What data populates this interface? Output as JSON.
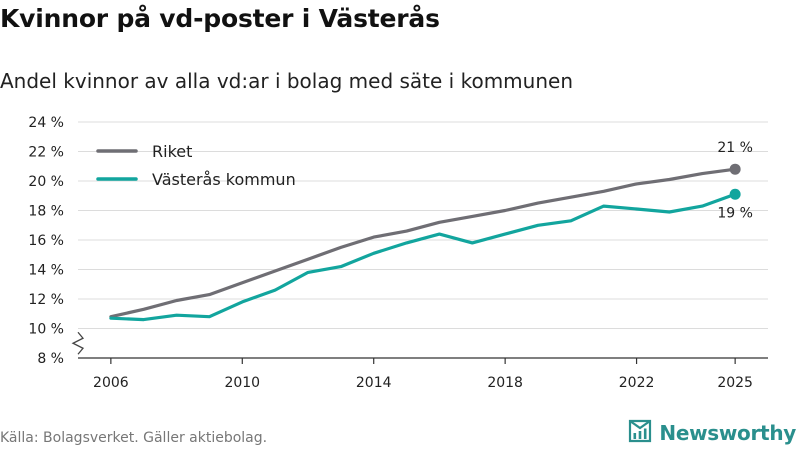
{
  "title": "Kvinnor på vd-poster i Västerås",
  "subtitle": "Andel kvinnor av alla vd:ar i bolag med säte i kommunen",
  "source": "Källa: Bolagsverket. Gäller aktiebolag.",
  "brand": "Newsworthy",
  "colors": {
    "riket": "#6f6e74",
    "vasteras": "#12a59e",
    "brand": "#2a8f8d"
  },
  "chart_data": {
    "type": "line",
    "title": "Kvinnor på vd-poster i Västerås",
    "xlabel": "",
    "ylabel": "",
    "x": [
      2006,
      2007,
      2008,
      2009,
      2010,
      2011,
      2012,
      2013,
      2014,
      2015,
      2016,
      2017,
      2018,
      2019,
      2020,
      2021,
      2022,
      2023,
      2024,
      2025
    ],
    "xticks": [
      2006,
      2010,
      2014,
      2018,
      2022,
      2025
    ],
    "xtick_labels": [
      "2006",
      "2010",
      "2014",
      "2018",
      "2022",
      "2025"
    ],
    "yticks": [
      8,
      10,
      12,
      14,
      16,
      18,
      20,
      22,
      24
    ],
    "ytick_labels": [
      "8 %",
      "10 %",
      "12 %",
      "14 %",
      "16 %",
      "18 %",
      "20 %",
      "22 %",
      "24 %"
    ],
    "ylim": [
      8,
      24
    ],
    "xlim": [
      2005,
      2026
    ],
    "axis_break": true,
    "grid": true,
    "legend_position": "top-left",
    "series": [
      {
        "name": "Riket",
        "color": "#6f6e74",
        "values": [
          10.8,
          11.3,
          11.9,
          12.3,
          13.1,
          13.9,
          14.7,
          15.5,
          16.2,
          16.6,
          17.2,
          17.6,
          18.0,
          18.5,
          18.9,
          19.3,
          19.8,
          20.1,
          20.5,
          20.8
        ],
        "end_label": "21 %",
        "end_label_position": "above"
      },
      {
        "name": "Västerås kommun",
        "color": "#12a59e",
        "values": [
          10.7,
          10.6,
          10.9,
          10.8,
          11.8,
          12.6,
          13.8,
          14.2,
          15.1,
          15.8,
          16.4,
          15.8,
          16.4,
          17.0,
          17.3,
          18.3,
          18.1,
          17.9,
          18.3,
          19.1
        ],
        "end_label": "19 %",
        "end_label_position": "below"
      }
    ]
  }
}
